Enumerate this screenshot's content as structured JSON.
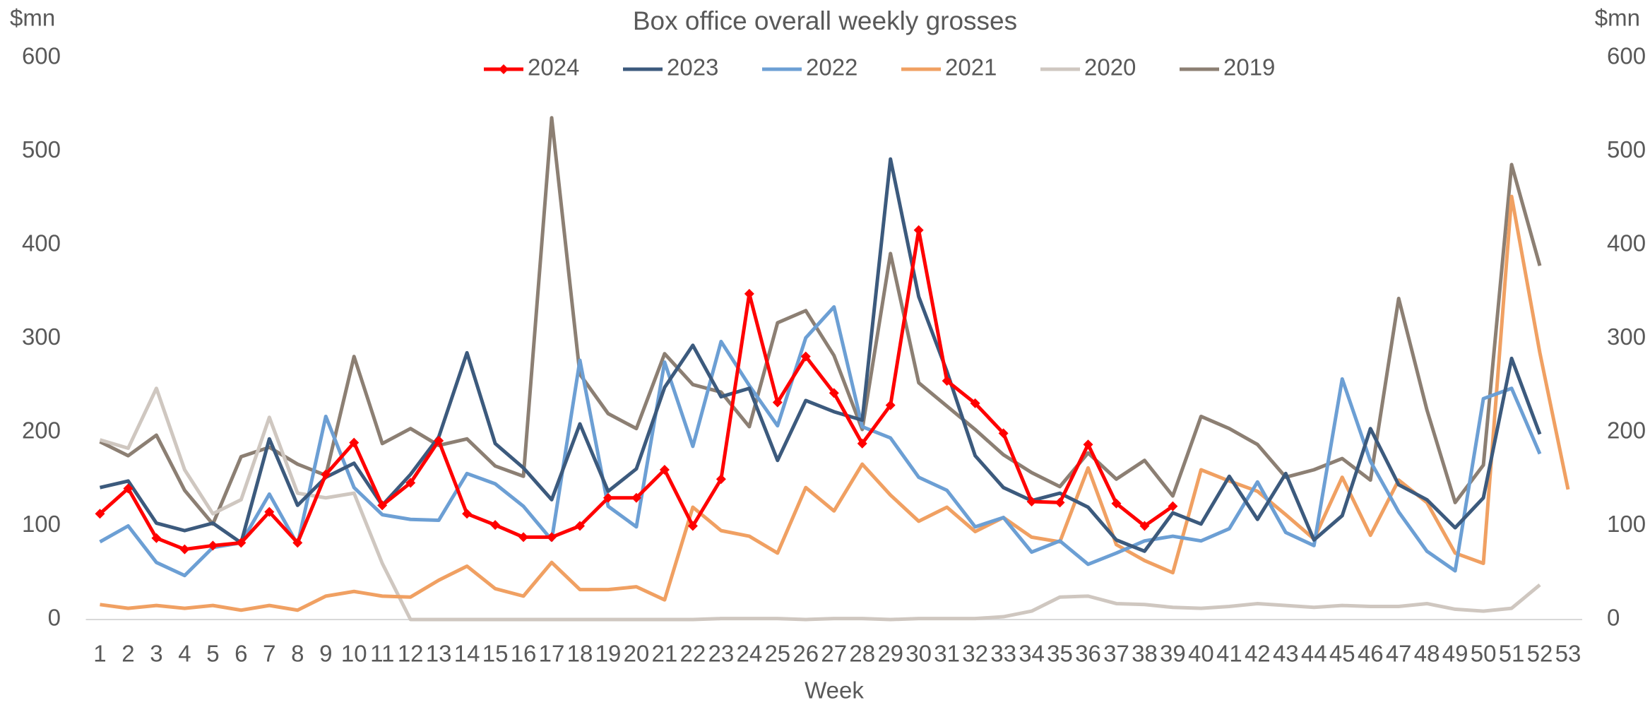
{
  "chart_data": {
    "type": "line",
    "title": "Box office overall weekly grosses",
    "x_label": "Week",
    "y_label": "$mn",
    "y2_label": "$mn",
    "categories": [
      "1",
      "2",
      "3",
      "4",
      "5",
      "6",
      "7",
      "8",
      "9",
      "10",
      "11",
      "12",
      "13",
      "14",
      "15",
      "16",
      "17",
      "18",
      "19",
      "20",
      "21",
      "22",
      "23",
      "24",
      "25",
      "26",
      "27",
      "28",
      "29",
      "30",
      "31",
      "32",
      "33",
      "34",
      "35",
      "36",
      "37",
      "38",
      "39",
      "40",
      "41",
      "42",
      "43",
      "44",
      "45",
      "46",
      "47",
      "48",
      "49",
      "50",
      "51",
      "52",
      "53"
    ],
    "ylim": [
      0,
      600
    ],
    "yticks": [
      0,
      100,
      200,
      300,
      400,
      500,
      600
    ],
    "y2lim": [
      0,
      600
    ],
    "y2ticks": [
      0,
      100,
      200,
      300,
      400,
      500,
      600
    ],
    "legend": "top",
    "series": [
      {
        "name": "2024",
        "color": "#ff0000",
        "marker": "diamond",
        "values": [
          113,
          140,
          87,
          75,
          79,
          82,
          115,
          82,
          155,
          189,
          122,
          146,
          191,
          113,
          101,
          88,
          88,
          100,
          130,
          130,
          160,
          100,
          150,
          348,
          232,
          281,
          242,
          188,
          229,
          416,
          255,
          231,
          199,
          126,
          125,
          187,
          124,
          100,
          121,
          null,
          null,
          null,
          null,
          null,
          null,
          null,
          null,
          null,
          null,
          null,
          null,
          null,
          null
        ]
      },
      {
        "name": "2023",
        "color": "#3c5a7d",
        "values": [
          141,
          148,
          103,
          95,
          103,
          82,
          193,
          122,
          152,
          167,
          122,
          155,
          195,
          285,
          188,
          162,
          128,
          209,
          137,
          161,
          248,
          293,
          238,
          247,
          170,
          234,
          222,
          213,
          492,
          345,
          265,
          175,
          141,
          127,
          135,
          120,
          85,
          73,
          114,
          102,
          153,
          107,
          156,
          85,
          111,
          204,
          144,
          128,
          98,
          130,
          279,
          198,
          null
        ]
      },
      {
        "name": "2022",
        "color": "#6c9fd4",
        "values": [
          83,
          100,
          61,
          47,
          77,
          82,
          134,
          80,
          217,
          141,
          112,
          107,
          106,
          156,
          145,
          121,
          85,
          277,
          121,
          99,
          275,
          185,
          297,
          250,
          207,
          301,
          334,
          206,
          194,
          152,
          138,
          99,
          109,
          72,
          84,
          59,
          71,
          84,
          89,
          84,
          97,
          147,
          93,
          79,
          257,
          169,
          115,
          73,
          52,
          236,
          247,
          177,
          null
        ]
      },
      {
        "name": "2021",
        "color": "#f0a062",
        "values": [
          16,
          12,
          15,
          12,
          15,
          10,
          15,
          10,
          25,
          30,
          25,
          24,
          42,
          57,
          33,
          25,
          61,
          32,
          32,
          35,
          21,
          120,
          95,
          89,
          71,
          141,
          116,
          166,
          133,
          105,
          120,
          94,
          109,
          88,
          83,
          162,
          80,
          63,
          50,
          160,
          148,
          137,
          112,
          86,
          152,
          90,
          149,
          125,
          71,
          60,
          452,
          285,
          139
        ]
      },
      {
        "name": "2020",
        "color": "#cfc7c0",
        "values": [
          192,
          183,
          247,
          160,
          113,
          128,
          216,
          135,
          130,
          135,
          60,
          0,
          0,
          0,
          0,
          0,
          0,
          0,
          0,
          0,
          0,
          0,
          1,
          1,
          1,
          0,
          1,
          1,
          0,
          1,
          1,
          1,
          3,
          9,
          24,
          25,
          17,
          16,
          13,
          12,
          14,
          17,
          15,
          13,
          15,
          14,
          14,
          17,
          11,
          9,
          12,
          37,
          null
        ]
      },
      {
        "name": "2019",
        "color": "#8c7f73",
        "values": [
          190,
          175,
          197,
          138,
          102,
          174,
          184,
          166,
          154,
          281,
          188,
          204,
          186,
          193,
          164,
          153,
          536,
          262,
          220,
          204,
          284,
          251,
          243,
          206,
          317,
          330,
          282,
          203,
          391,
          253,
          228,
          203,
          176,
          157,
          142,
          178,
          150,
          170,
          132,
          217,
          204,
          187,
          152,
          160,
          172,
          149,
          343,
          224,
          125,
          165,
          486,
          378,
          null
        ]
      }
    ]
  }
}
